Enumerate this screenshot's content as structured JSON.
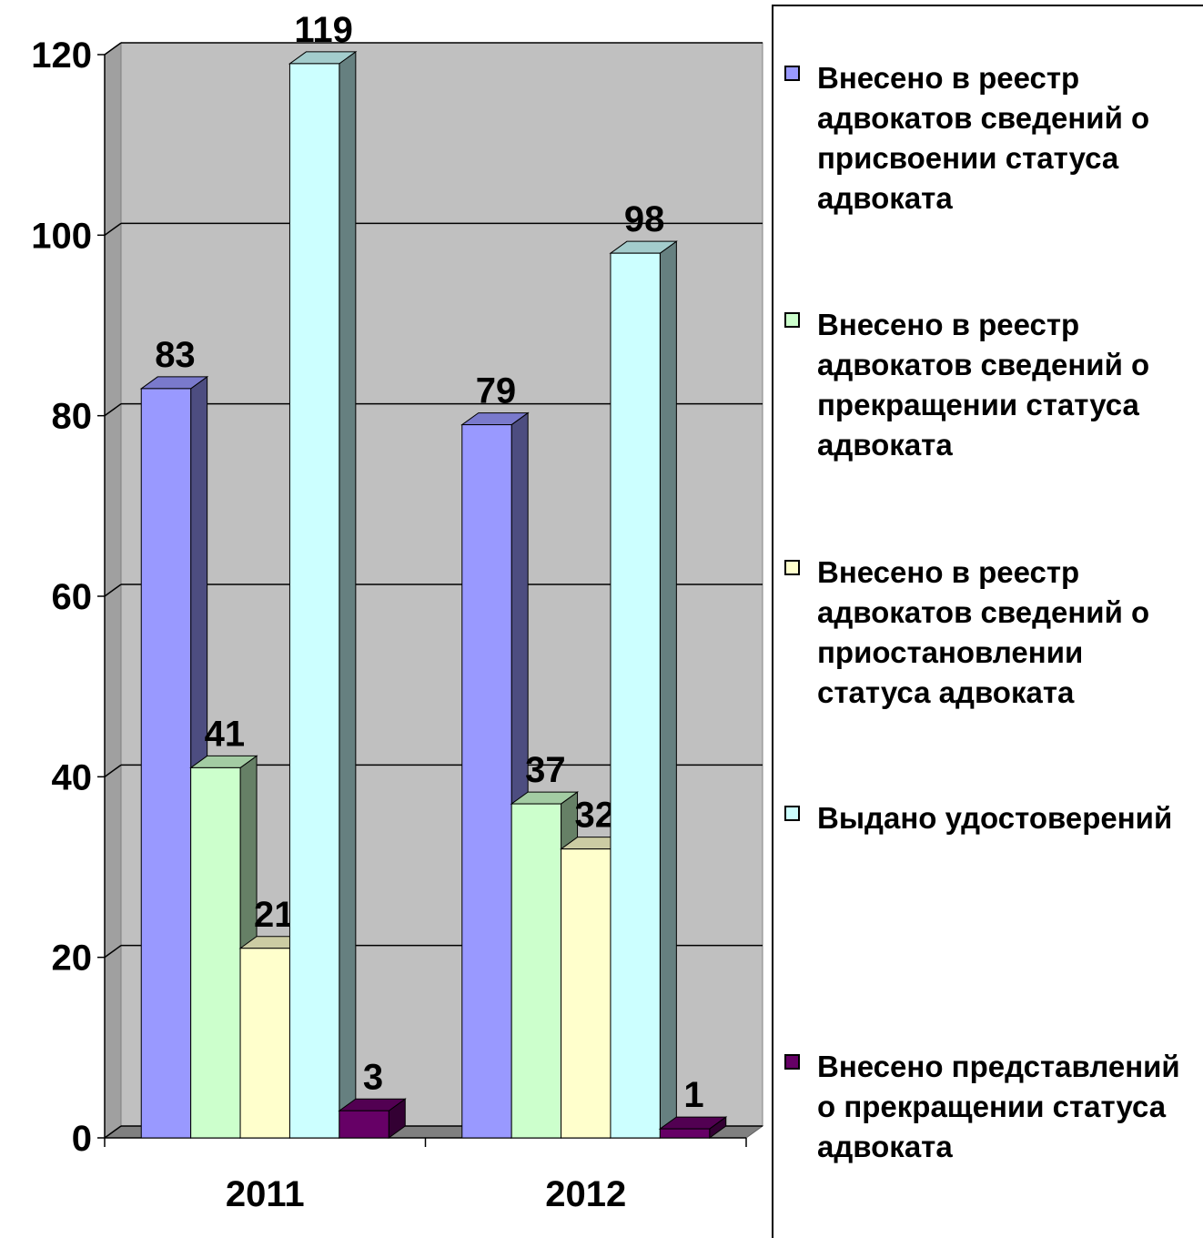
{
  "chart_data": {
    "type": "bar3d",
    "categories": [
      "2011",
      "2012"
    ],
    "series": [
      {
        "name": "Внесено в реестр адвокатов сведений о присвоении статуса адвоката",
        "color": "#9999ff",
        "values": [
          83,
          79
        ]
      },
      {
        "name": "Внесено в реестр адвокатов сведений о прекращении статуса адвоката",
        "color": "#ccffcc",
        "values": [
          41,
          37
        ]
      },
      {
        "name": "Внесено в реестр адвокатов сведений о приостановлении статуса адвоката",
        "color": "#ffffcc",
        "values": [
          21,
          32
        ]
      },
      {
        "name": "Выдано удостоверений",
        "color": "#ccffff",
        "values": [
          119,
          98
        ]
      },
      {
        "name": "Внесено представлений о прекращении статуса адвоката",
        "color": "#660066",
        "values": [
          3,
          1
        ]
      }
    ],
    "ylim": [
      0,
      120
    ],
    "yticks": [
      0,
      20,
      40,
      60,
      80,
      100,
      120
    ],
    "grid": true,
    "legend": "right"
  }
}
